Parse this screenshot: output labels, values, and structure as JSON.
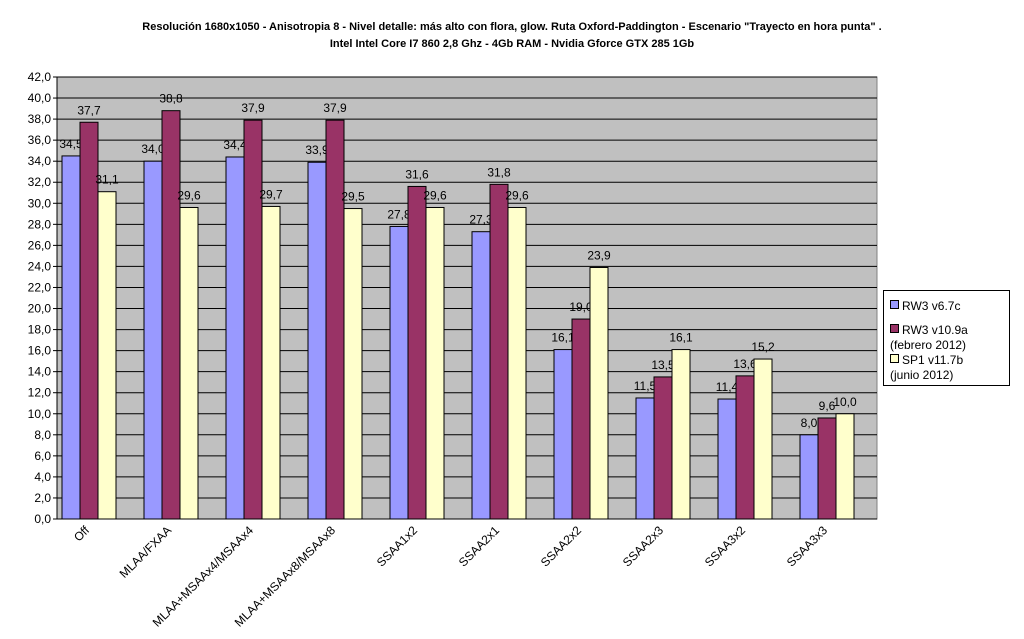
{
  "chart_data": {
    "type": "bar",
    "title": "Resolución 1680x1050 - Anisotropia 8 - Nivel detalle: más alto con flora, glow. Ruta Oxford-Paddington - Escenario \"Trayecto en hora punta\" .",
    "subtitle": "Intel Intel Core I7 860 2,8 Ghz - 4Gb RAM - Nvidia Gforce GTX 285 1Gb",
    "categories": [
      "Off",
      "MLAA/FXAA",
      "MLAA+MSAAx4/MSAAx4",
      "MLAA+MSAAx8/MSAAx8",
      "SSAA1x2",
      "SSAA2x1",
      "SSAA2x2",
      "SSAA2x3",
      "SSAA3x2",
      "SSAA3x3"
    ],
    "series": [
      {
        "name": "RW3 v6.7c",
        "color": "#9999ff",
        "values": [
          34.5,
          34.0,
          34.4,
          33.9,
          27.8,
          27.3,
          16.1,
          11.5,
          11.4,
          8.0
        ]
      },
      {
        "name": "RW3 v10.9a (febrero 2012)",
        "color": "#993366",
        "values": [
          37.7,
          38.8,
          37.9,
          37.9,
          31.6,
          31.8,
          19.0,
          13.5,
          13.6,
          9.6
        ]
      },
      {
        "name": "SP1 v11.7b (junio 2012)",
        "color": "#ffffcc",
        "values": [
          31.1,
          29.6,
          29.7,
          29.5,
          29.6,
          29.6,
          23.9,
          16.1,
          15.2,
          10.0
        ]
      }
    ],
    "ylim": [
      0,
      42
    ],
    "ytick_step": 2,
    "grid": true,
    "plot_background": "#c0c0c0",
    "legend_position": "right",
    "xlabel": "",
    "ylabel": ""
  }
}
